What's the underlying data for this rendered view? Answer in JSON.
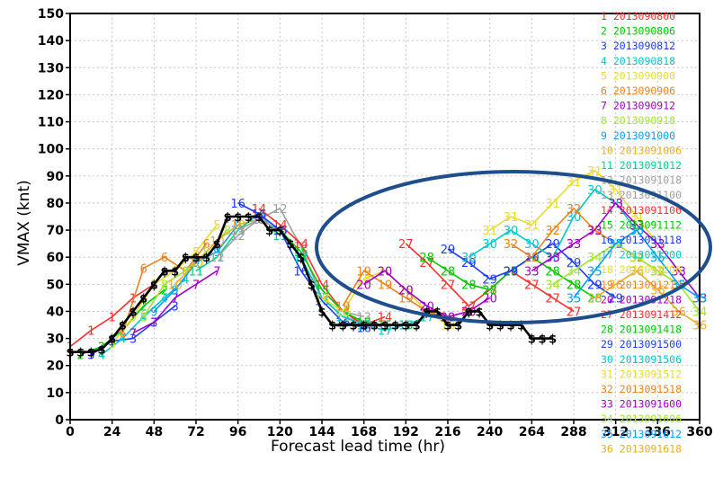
{
  "chart_data": {
    "type": "line",
    "xlabel": "Forecast lead time (hr)",
    "ylabel": "VMAX (knt)",
    "xlim": [
      0,
      360
    ],
    "ylim": [
      0,
      150
    ],
    "x_ticks": [
      0,
      24,
      48,
      72,
      96,
      120,
      144,
      168,
      192,
      216,
      240,
      264,
      288,
      312,
      336,
      360
    ],
    "y_ticks": [
      0,
      10,
      20,
      30,
      40,
      50,
      60,
      70,
      80,
      90,
      100,
      110,
      120,
      130,
      140,
      150
    ],
    "grid": true,
    "legend_position": "right",
    "annotation": "ellipse highlighting the ensemble spread between 144 and 360 hr",
    "best_track": {
      "marker": "$",
      "color": "#000000",
      "x": [
        0,
        6,
        12,
        18,
        24,
        30,
        36,
        42,
        48,
        54,
        60,
        66,
        72,
        78,
        84,
        90,
        96,
        102,
        108,
        114,
        120,
        126,
        132,
        138,
        144,
        150,
        156,
        162,
        168,
        174,
        180,
        186,
        192,
        198,
        204,
        210,
        216,
        222,
        228,
        234,
        240,
        246,
        252,
        258,
        264,
        270,
        276
      ],
      "y": [
        25,
        25,
        25,
        26,
        30,
        35,
        40,
        45,
        50,
        55,
        55,
        60,
        60,
        60,
        65,
        75,
        75,
        75,
        75,
        70,
        70,
        65,
        60,
        50,
        40,
        35,
        35,
        35,
        35,
        35,
        35,
        35,
        35,
        35,
        40,
        40,
        35,
        35,
        40,
        40,
        35,
        35,
        35,
        35,
        30,
        30,
        30
      ]
    },
    "series": [
      {
        "name": "1 2013090800",
        "marker": "1",
        "color": "#ff3030",
        "x": [
          0,
          12,
          24,
          36,
          48
        ],
        "y": [
          27,
          33,
          38,
          45,
          50
        ]
      },
      {
        "name": "2 2013090806",
        "marker": "2",
        "color": "#00c800",
        "x": [
          6,
          18,
          30,
          42,
          54
        ],
        "y": [
          24,
          27,
          33,
          42,
          48
        ]
      },
      {
        "name": "3 2013090812",
        "marker": "3",
        "color": "#1e3cff",
        "x": [
          12,
          24,
          36,
          48,
          60
        ],
        "y": [
          24,
          29,
          30,
          36,
          42
        ]
      },
      {
        "name": "4 2013090818",
        "marker": "4",
        "color": "#00c8c8",
        "x": [
          18,
          30,
          42,
          54,
          66
        ],
        "y": [
          24,
          30,
          38,
          45,
          52
        ]
      },
      {
        "name": "5 2013090900",
        "marker": "5",
        "color": "#e6dc32",
        "x": [
          24,
          36,
          48,
          60,
          72,
          84
        ],
        "y": [
          28,
          38,
          50,
          55,
          62,
          72
        ]
      },
      {
        "name": "6 2013090906",
        "marker": "6",
        "color": "#f0821e",
        "x": [
          30,
          42,
          54,
          66,
          78
        ],
        "y": [
          32,
          56,
          60,
          55,
          65
        ]
      },
      {
        "name": "7 2013090912",
        "marker": "7",
        "color": "#a000c8",
        "x": [
          36,
          48,
          60,
          72,
          84
        ],
        "y": [
          32,
          36,
          45,
          50,
          55
        ]
      },
      {
        "name": "8 2013090918",
        "marker": "8",
        "color": "#a0e632",
        "x": [
          42,
          54,
          66,
          78,
          90
        ],
        "y": [
          38,
          50,
          55,
          62,
          70
        ]
      },
      {
        "name": "9 2013091000",
        "marker": "9",
        "color": "#00a0ff",
        "x": [
          48,
          60,
          72,
          84,
          96
        ],
        "y": [
          40,
          48,
          58,
          62,
          72
        ]
      },
      {
        "name": "10 2013091006",
        "marker": "10",
        "color": "#e6af2d",
        "x": [
          60,
          72,
          84,
          96,
          108
        ],
        "y": [
          50,
          58,
          66,
          72,
          74
        ]
      },
      {
        "name": "11 2013091012",
        "marker": "11",
        "color": "#00d28c",
        "x": [
          72,
          84,
          96,
          108,
          120
        ],
        "y": [
          55,
          60,
          70,
          76,
          68
        ]
      },
      {
        "name": "12 2013091018",
        "marker": "12",
        "color": "#a0a0a0",
        "x": [
          84,
          96,
          108,
          120,
          132,
          144,
          156,
          168
        ],
        "y": [
          60,
          68,
          74,
          78,
          64,
          45,
          38,
          36
        ]
      },
      {
        "name": "13 2013091100",
        "marker": "13",
        "color": "#a0a0a0",
        "x": [
          96,
          108,
          120,
          132,
          144,
          156,
          168
        ],
        "y": [
          70,
          74,
          70,
          60,
          45,
          40,
          38
        ]
      },
      {
        "name": "14 2013091106",
        "marker": "14",
        "color": "#ff3030",
        "x": [
          108,
          120,
          132,
          144,
          156,
          168,
          180
        ],
        "y": [
          78,
          72,
          65,
          50,
          40,
          35,
          38
        ]
      },
      {
        "name": "15 2013091112",
        "marker": "15",
        "color": "#00c800",
        "x": [
          120,
          132,
          144,
          156,
          168,
          180,
          192
        ],
        "y": [
          70,
          62,
          48,
          40,
          36,
          35,
          35
        ]
      },
      {
        "name": "16 2013091118",
        "marker": "16",
        "color": "#1e3cff",
        "x": [
          96,
          108,
          120,
          132,
          144,
          156,
          168
        ],
        "y": [
          80,
          76,
          70,
          55,
          44,
          36,
          34
        ]
      },
      {
        "name": "17 2013091200",
        "marker": "17",
        "color": "#00c8c8",
        "x": [
          132,
          144,
          156,
          168,
          180,
          192,
          204
        ],
        "y": [
          60,
          45,
          38,
          35,
          33,
          35,
          38
        ]
      },
      {
        "name": "18 2013091206",
        "marker": "18",
        "color": "#e6dc32",
        "x": [
          144,
          156,
          168,
          180,
          192,
          204,
          216
        ],
        "y": [
          45,
          40,
          52,
          55,
          48,
          40,
          35
        ]
      },
      {
        "name": "19 2013091212",
        "marker": "19",
        "color": "#f0821e",
        "x": [
          156,
          168,
          180,
          192,
          204,
          216,
          228
        ],
        "y": [
          42,
          55,
          50,
          45,
          40,
          38,
          40
        ]
      },
      {
        "name": "20 2013091218",
        "marker": "20",
        "color": "#a000c8",
        "x": [
          168,
          180,
          192,
          204,
          216,
          228,
          240
        ],
        "y": [
          50,
          55,
          48,
          42,
          38,
          40,
          45
        ]
      },
      {
        "name": "27 2013091412",
        "marker": "27",
        "color": "#ff3030",
        "x": [
          192,
          204,
          216,
          228,
          240,
          252,
          264,
          276,
          288
        ],
        "y": [
          65,
          58,
          50,
          42,
          48,
          55,
          50,
          45,
          40
        ]
      },
      {
        "name": "28 2013091418",
        "marker": "28",
        "color": "#00c800",
        "x": [
          204,
          216,
          228,
          240,
          252,
          264,
          276,
          288,
          300
        ],
        "y": [
          60,
          55,
          50,
          48,
          55,
          60,
          55,
          50,
          45
        ]
      },
      {
        "name": "29 2013091500",
        "marker": "29",
        "color": "#1e3cff",
        "x": [
          216,
          228,
          240,
          252,
          264,
          276,
          288,
          300,
          312
        ],
        "y": [
          63,
          58,
          52,
          55,
          60,
          65,
          58,
          50,
          45
        ]
      },
      {
        "name": "30 2013091506",
        "marker": "30",
        "color": "#00c8c8",
        "x": [
          228,
          240,
          252,
          264,
          276,
          288,
          300,
          312,
          324
        ],
        "y": [
          60,
          65,
          70,
          65,
          60,
          75,
          85,
          80,
          70
        ]
      },
      {
        "name": "31 2013091512",
        "marker": "31",
        "color": "#e6dc32",
        "x": [
          240,
          252,
          264,
          276,
          288,
          300,
          312,
          324,
          336
        ],
        "y": [
          70,
          75,
          72,
          80,
          88,
          92,
          85,
          75,
          65
        ]
      },
      {
        "name": "32 2013091518",
        "marker": "32",
        "color": "#f0821e",
        "x": [
          252,
          264,
          276,
          288,
          300,
          312,
          324,
          336,
          348
        ],
        "y": [
          65,
          60,
          70,
          78,
          70,
          65,
          60,
          55,
          50
        ]
      },
      {
        "name": "33 2013091600",
        "marker": "33",
        "color": "#a000c8",
        "x": [
          264,
          276,
          288,
          300,
          312,
          324,
          336,
          348,
          360
        ],
        "y": [
          55,
          60,
          65,
          70,
          80,
          72,
          65,
          55,
          45
        ]
      },
      {
        "name": "34 2013091606",
        "marker": "34",
        "color": "#a0e632",
        "x": [
          276,
          288,
          300,
          312,
          324,
          336,
          348,
          360
        ],
        "y": [
          50,
          55,
          60,
          65,
          60,
          55,
          50,
          40
        ]
      },
      {
        "name": "35 2013091612",
        "marker": "35",
        "color": "#00a0ff",
        "x": [
          288,
          300,
          312,
          324,
          336,
          348,
          360
        ],
        "y": [
          45,
          55,
          65,
          70,
          60,
          50,
          45
        ]
      },
      {
        "name": "36 2013091618",
        "marker": "36",
        "color": "#e6af2d",
        "x": [
          300,
          312,
          324,
          336,
          348,
          360
        ],
        "y": [
          45,
          50,
          55,
          48,
          40,
          35
        ]
      }
    ]
  }
}
